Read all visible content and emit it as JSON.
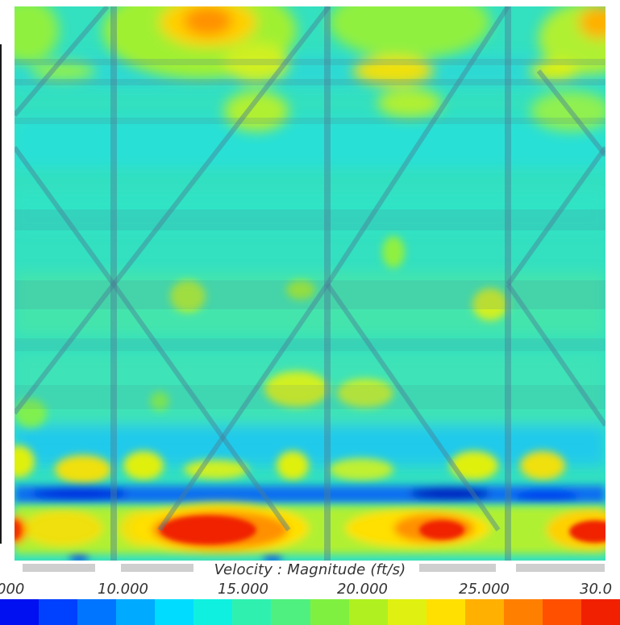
{
  "colorbar": {
    "title": "Velocity : Magnitude (ft/s)",
    "ticks": [
      "000",
      "10.000",
      "15.000",
      "20.000",
      "25.000",
      "30.0"
    ],
    "range": [
      5,
      30
    ],
    "colors": [
      "#0010f0",
      "#0040ff",
      "#0075ff",
      "#00aaff",
      "#00dcff",
      "#10f0e0",
      "#30f0b0",
      "#50f080",
      "#80f040",
      "#b0f020",
      "#e0f010",
      "#ffe000",
      "#ffb000",
      "#ff8000",
      "#ff5000",
      "#f02000"
    ]
  },
  "field": {
    "background_color": "#3ee0b0",
    "structure_color": "#4a7f96"
  }
}
